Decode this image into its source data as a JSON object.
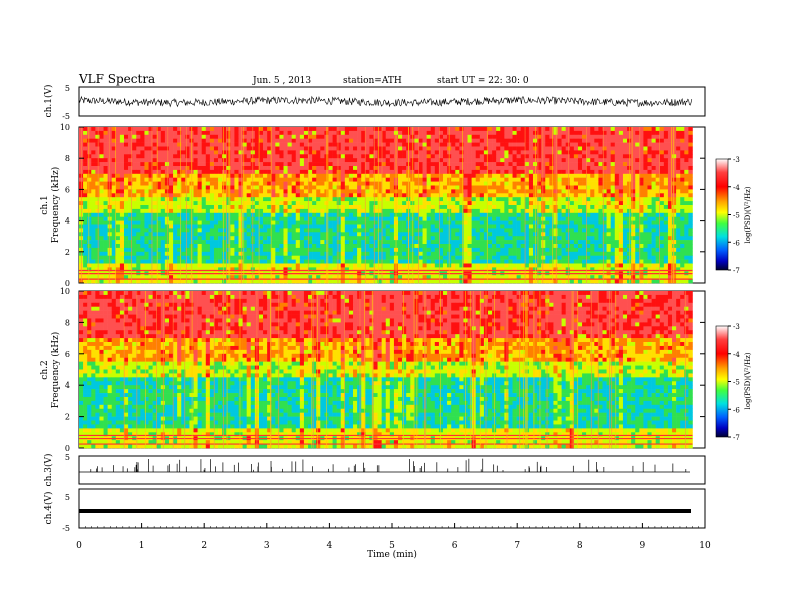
{
  "header": {
    "title": "VLF  Spectra",
    "date": "Jun. 5  , 2013",
    "station": "station=ATH",
    "start": "start  UT  =   22: 30: 0"
  },
  "chart_data": [
    {
      "type": "line",
      "ylabel": "ch.1(V)",
      "ylim": [
        -5,
        5
      ],
      "yticks": [
        "5",
        "-5"
      ],
      "xlim": [
        0,
        10
      ],
      "trace_color": "#000000",
      "note": "broadband waveform, amplitude about ±1.5 V"
    },
    {
      "type": "heatmap",
      "ylabel_channel": "ch.1",
      "ylabel": "Frequency  (kHz)",
      "ylim": [
        0,
        10
      ],
      "yticks": [
        "0",
        "2",
        "4",
        "6",
        "8",
        "10"
      ],
      "xlim": [
        0,
        9.8
      ],
      "colorbar": {
        "label": "log(PSD)(V²/Hz)",
        "range": [
          -7,
          -3
        ],
        "ticks": [
          "-3",
          "-4",
          "-5",
          "-6",
          "-7"
        ]
      }
    },
    {
      "type": "heatmap",
      "ylabel_channel": "ch.2",
      "ylabel": "Frequency  (kHz)",
      "ylim": [
        0,
        10
      ],
      "yticks": [
        "0",
        "2",
        "4",
        "6",
        "8",
        "10"
      ],
      "xlim": [
        0,
        9.8
      ],
      "colorbar": {
        "label": "log(PSD)(V²/Hz)",
        "range": [
          -7,
          -3
        ],
        "ticks": [
          "-3",
          "-4",
          "-5",
          "-6",
          "-7"
        ]
      }
    },
    {
      "type": "line",
      "ylabel": "ch.3(V)",
      "ylim": [
        -5,
        5
      ],
      "yticks": [
        "5"
      ],
      "trace_color": "#000000"
    },
    {
      "type": "line",
      "ylabel": "ch.4(V)",
      "ylim": [
        -5,
        5
      ],
      "yticks": [
        "5",
        "-5"
      ],
      "trace_color": "#000000"
    }
  ],
  "x_axis": {
    "label": "Time  (min)",
    "range": [
      0,
      10
    ],
    "ticks": [
      "0",
      "1",
      "2",
      "3",
      "4",
      "5",
      "6",
      "7",
      "8",
      "9",
      "10"
    ]
  }
}
